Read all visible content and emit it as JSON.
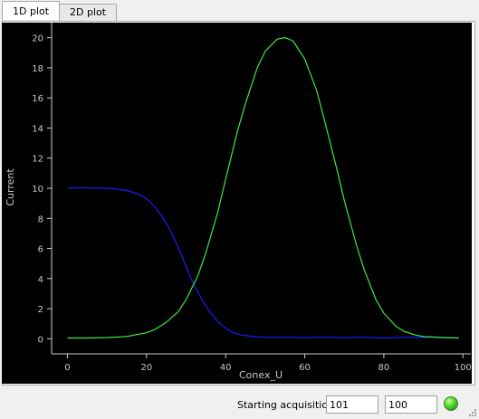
{
  "tabs": [
    {
      "label": "1D plot",
      "active": true
    },
    {
      "label": "2D plot",
      "active": false
    }
  ],
  "chart_data": {
    "type": "line",
    "title": "",
    "xlabel": "Conex_U",
    "ylabel": "Current",
    "xlim": [
      -4,
      102
    ],
    "ylim": [
      -1,
      21
    ],
    "x_ticks": [
      0,
      20,
      40,
      60,
      80,
      100
    ],
    "y_ticks": [
      0,
      2,
      4,
      6,
      8,
      10,
      12,
      14,
      16,
      18,
      20
    ],
    "grid": false,
    "background": "#000000",
    "series": [
      {
        "color": "#1c1cff",
        "x": [
          0,
          5,
          10,
          12,
          15,
          18,
          20,
          22,
          24,
          26,
          28,
          30,
          32,
          34,
          36,
          38,
          40,
          42,
          44,
          46,
          48,
          50,
          55,
          60,
          65,
          70,
          75,
          80,
          85,
          90,
          95,
          99
        ],
        "y": [
          10.02,
          10.02,
          10.0,
          9.95,
          9.85,
          9.6,
          9.3,
          8.8,
          8.1,
          7.2,
          6.1,
          4.8,
          3.6,
          2.6,
          1.8,
          1.15,
          0.7,
          0.4,
          0.25,
          0.18,
          0.12,
          0.1,
          0.1,
          0.08,
          0.1,
          0.08,
          0.1,
          0.06,
          0.1,
          0.08,
          0.1,
          0.06
        ]
      },
      {
        "color": "#3ee83e",
        "x": [
          0,
          5,
          10,
          15,
          20,
          22,
          25,
          28,
          30,
          33,
          35,
          38,
          40,
          43,
          45,
          48,
          50,
          53,
          55,
          57,
          60,
          63,
          65,
          68,
          70,
          73,
          75,
          78,
          80,
          83,
          85,
          88,
          90,
          95,
          99
        ],
        "y": [
          0.05,
          0.05,
          0.08,
          0.15,
          0.4,
          0.6,
          1.1,
          1.8,
          2.6,
          4.2,
          5.7,
          8.4,
          10.6,
          13.8,
          15.6,
          18.0,
          19.1,
          19.9,
          20.0,
          19.8,
          18.6,
          16.5,
          14.5,
          11.4,
          9.2,
          6.3,
          4.6,
          2.6,
          1.7,
          0.85,
          0.5,
          0.25,
          0.15,
          0.08,
          0.05
        ]
      }
    ]
  },
  "status": {
    "label": "Starting acquisition",
    "field1": "101",
    "field2": "100",
    "led_color": "#4cd93a"
  }
}
